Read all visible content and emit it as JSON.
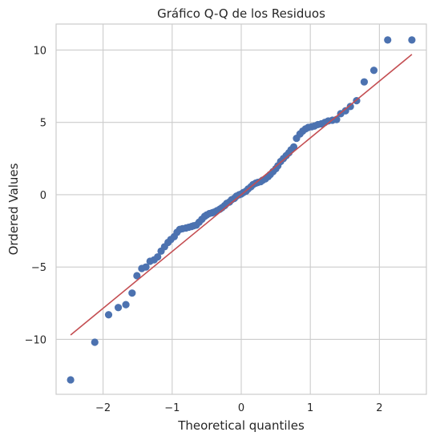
{
  "chart_data": {
    "type": "scatter",
    "title": "Gráfico Q-Q de los Residuos",
    "xlabel": "Theoretical quantiles",
    "ylabel": "Ordered Values",
    "xlim": [
      -2.68,
      2.68
    ],
    "ylim": [
      -13.8,
      11.8
    ],
    "xticks": [
      -2,
      -1,
      0,
      1,
      2
    ],
    "xtick_labels": [
      "−2",
      "−1",
      "0",
      "1",
      "2"
    ],
    "yticks": [
      -10,
      -5,
      0,
      5,
      10
    ],
    "ytick_labels": [
      "−10",
      "−5",
      "0",
      "5",
      "10"
    ],
    "grid": true,
    "legend": "none",
    "colors": {
      "points": "#4c72b0",
      "fit_line": "#c44e52",
      "grid": "#cccccc",
      "spine": "#cccccc"
    },
    "fit_line": {
      "x": [
        -2.47,
        2.47
      ],
      "y": [
        -9.7,
        9.7
      ]
    },
    "series": [
      {
        "kind": "points",
        "x": [
          -2.47,
          -2.12,
          -1.92,
          -1.78,
          -1.67,
          -1.58,
          -1.51,
          -1.44,
          -1.38,
          -1.32,
          -1.26,
          -1.21,
          -1.16,
          -1.11,
          -1.06,
          -1.02,
          -0.97,
          -0.93,
          -0.89,
          -0.85,
          -0.8,
          -0.76,
          -0.72,
          -0.69,
          -0.65,
          -0.61,
          -0.57,
          -0.53,
          -0.5,
          -0.46,
          -0.42,
          -0.39,
          -0.35,
          -0.31,
          -0.28,
          -0.24,
          -0.21,
          -0.17,
          -0.14,
          -0.1,
          -0.07,
          -0.03,
          0.0,
          0.03,
          0.07,
          0.1,
          0.14,
          0.17,
          0.21,
          0.24,
          0.28,
          0.31,
          0.35,
          0.39,
          0.42,
          0.46,
          0.5,
          0.53,
          0.57,
          0.61,
          0.65,
          0.69,
          0.72,
          0.76,
          0.8,
          0.85,
          0.89,
          0.93,
          0.97,
          1.02,
          1.06,
          1.11,
          1.16,
          1.21,
          1.26,
          1.32,
          1.38,
          1.44,
          1.51,
          1.58,
          1.67,
          1.78,
          1.92,
          2.12,
          2.47
        ],
        "y": [
          -12.8,
          -10.2,
          -8.3,
          -7.8,
          -7.6,
          -6.8,
          -5.6,
          -5.1,
          -5.0,
          -4.6,
          -4.5,
          -4.3,
          -3.9,
          -3.6,
          -3.3,
          -3.1,
          -2.9,
          -2.6,
          -2.4,
          -2.35,
          -2.3,
          -2.25,
          -2.2,
          -2.15,
          -2.1,
          -1.9,
          -1.7,
          -1.5,
          -1.4,
          -1.3,
          -1.25,
          -1.2,
          -1.1,
          -1.0,
          -0.9,
          -0.75,
          -0.6,
          -0.5,
          -0.35,
          -0.25,
          -0.1,
          0.0,
          0.05,
          0.15,
          0.25,
          0.4,
          0.55,
          0.7,
          0.8,
          0.85,
          0.9,
          1.0,
          1.1,
          1.25,
          1.4,
          1.6,
          1.8,
          2.0,
          2.3,
          2.5,
          2.7,
          2.9,
          3.1,
          3.3,
          3.9,
          4.2,
          4.4,
          4.55,
          4.65,
          4.7,
          4.75,
          4.85,
          4.9,
          5.0,
          5.1,
          5.15,
          5.2,
          5.6,
          5.8,
          6.1,
          6.5,
          7.8,
          8.6,
          10.7,
          10.7
        ]
      }
    ]
  }
}
